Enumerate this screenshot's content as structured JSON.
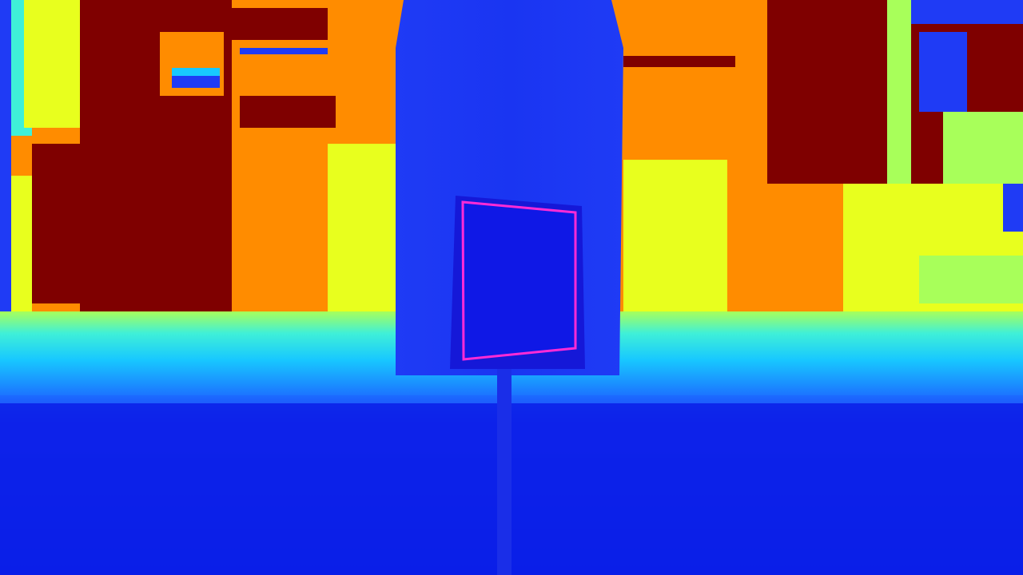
{
  "image": {
    "kind": "depth-map-visualization",
    "colormap": "jet",
    "colors": {
      "near_deep_blue": "#0a1fe8",
      "mid_blue": "#1f3bf5",
      "light_blue": "#1c6bff",
      "cyan": "#18c8ff",
      "teal": "#3ff0d8",
      "green_yellow": "#a8ff5a",
      "yellow": "#e8ff1e",
      "orange": "#ff8c00",
      "dark_red": "#7f0000",
      "overlay_magenta": "#ff2bd6"
    }
  },
  "overlay": {
    "shape": "quadrilateral-outline",
    "color": "#ff2bd6"
  }
}
